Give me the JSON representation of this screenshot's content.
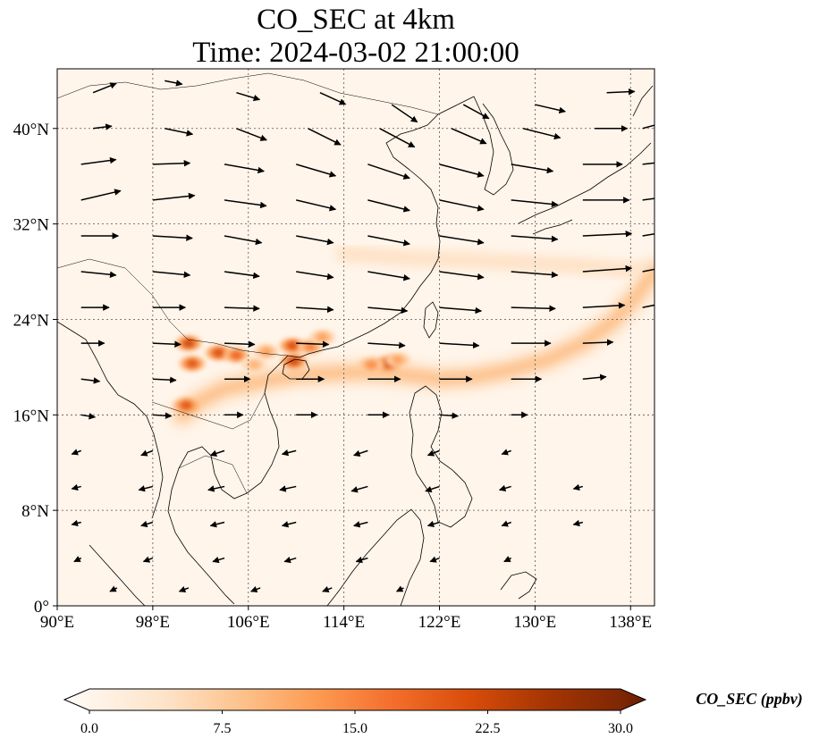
{
  "title": {
    "line1": "CO_SEC at 4km",
    "line2": "Time: 2024-03-02 21:00:00"
  },
  "map": {
    "lon_range": [
      90,
      140
    ],
    "lat_range": [
      0,
      45
    ],
    "grid": true,
    "x_ticks": [
      {
        "value": 90,
        "label": "90°E"
      },
      {
        "value": 98,
        "label": "98°E"
      },
      {
        "value": 106,
        "label": "106°E"
      },
      {
        "value": 114,
        "label": "114°E"
      },
      {
        "value": 122,
        "label": "122°E"
      },
      {
        "value": 130,
        "label": "130°E"
      },
      {
        "value": 138,
        "label": "138°E"
      }
    ],
    "y_ticks": [
      {
        "value": 0,
        "label": "0°"
      },
      {
        "value": 8,
        "label": "8°N"
      },
      {
        "value": 16,
        "label": "16°N"
      },
      {
        "value": 24,
        "label": "24°N"
      },
      {
        "value": 32,
        "label": "32°N"
      },
      {
        "value": 40,
        "label": "40°N"
      }
    ],
    "background_color": "#fff5ea",
    "plume_path": [
      [
        100.5,
        16.0
      ],
      [
        102,
        17.2
      ],
      [
        104,
        18.2
      ],
      [
        107,
        18.8
      ],
      [
        110,
        19.3
      ],
      [
        113,
        19.5
      ],
      [
        116,
        19.6
      ],
      [
        119,
        19.4
      ],
      [
        122,
        19.0
      ],
      [
        125,
        19.2
      ],
      [
        128,
        19.8
      ],
      [
        131,
        20.6
      ],
      [
        134,
        22.0
      ],
      [
        136.5,
        23.8
      ],
      [
        138.5,
        26.0
      ],
      [
        140,
        28.0
      ]
    ],
    "northern_plume_path": [
      [
        114,
        29.5
      ],
      [
        117,
        29.3
      ],
      [
        120,
        29.1
      ],
      [
        124,
        29.0
      ],
      [
        128,
        28.8
      ],
      [
        132,
        28.6
      ],
      [
        136,
        28.3
      ],
      [
        140,
        28.0
      ]
    ],
    "hotspots": [
      {
        "lon": 101.0,
        "lat": 22.0,
        "value": 22
      },
      {
        "lon": 101.3,
        "lat": 20.3,
        "value": 20
      },
      {
        "lon": 103.5,
        "lat": 21.2,
        "value": 21
      },
      {
        "lon": 105.0,
        "lat": 21.0,
        "value": 18
      },
      {
        "lon": 109.7,
        "lat": 21.8,
        "value": 21
      },
      {
        "lon": 111.2,
        "lat": 21.7,
        "value": 15
      },
      {
        "lon": 112.2,
        "lat": 22.5,
        "value": 12
      },
      {
        "lon": 107.5,
        "lat": 21.3,
        "value": 12
      },
      {
        "lon": 106.5,
        "lat": 20.2,
        "value": 10
      },
      {
        "lon": 100.8,
        "lat": 16.8,
        "value": 20
      },
      {
        "lon": 109.8,
        "lat": 20.5,
        "value": 22
      },
      {
        "lon": 117.7,
        "lat": 20.3,
        "value": 22
      },
      {
        "lon": 116.3,
        "lat": 20.2,
        "value": 14
      },
      {
        "lon": 118.5,
        "lat": 20.6,
        "value": 12
      }
    ],
    "wind_vectors": [
      [
        93,
        43,
        2,
        0.8
      ],
      [
        99,
        44,
        1.5,
        -0.3
      ],
      [
        105,
        43,
        2.0,
        -0.6
      ],
      [
        112,
        43,
        2.2,
        -1.0
      ],
      [
        118,
        42,
        2.2,
        -1.5
      ],
      [
        124,
        42,
        2.2,
        -1.2
      ],
      [
        130,
        42,
        2.6,
        -0.6
      ],
      [
        136,
        43,
        2.4,
        0.1
      ],
      [
        93,
        40,
        1.6,
        0.2
      ],
      [
        99,
        40,
        2.4,
        -0.5
      ],
      [
        105,
        40,
        2.6,
        -1.0
      ],
      [
        111,
        40,
        2.8,
        -1.4
      ],
      [
        117,
        40,
        3.0,
        -1.6
      ],
      [
        123,
        40,
        3.0,
        -1.3
      ],
      [
        129,
        40,
        3.2,
        -0.8
      ],
      [
        135,
        40,
        2.8,
        0.0
      ],
      [
        139,
        40,
        2.2,
        0.6
      ],
      [
        92,
        37,
        3.0,
        0.4
      ],
      [
        98,
        37,
        3.2,
        0.1
      ],
      [
        104,
        37,
        3.4,
        -0.6
      ],
      [
        110,
        37,
        3.4,
        -1.0
      ],
      [
        116,
        37,
        3.6,
        -1.2
      ],
      [
        122,
        37,
        3.8,
        -1.0
      ],
      [
        128,
        37,
        3.6,
        -0.6
      ],
      [
        134,
        37,
        3.4,
        0.0
      ],
      [
        139,
        37,
        2.8,
        0.3
      ],
      [
        92,
        34,
        3.4,
        0.8
      ],
      [
        98,
        34,
        3.6,
        0.4
      ],
      [
        104,
        34,
        3.6,
        -0.5
      ],
      [
        110,
        34,
        3.4,
        -0.8
      ],
      [
        116,
        34,
        3.6,
        -0.9
      ],
      [
        122,
        34,
        3.8,
        -0.8
      ],
      [
        128,
        34,
        4.0,
        -0.4
      ],
      [
        134,
        34,
        4.0,
        0.0
      ],
      [
        139,
        34,
        3.0,
        0.4
      ],
      [
        92,
        31,
        3.2,
        0.0
      ],
      [
        98,
        31,
        3.4,
        -0.2
      ],
      [
        104,
        31,
        3.2,
        -0.6
      ],
      [
        110,
        31,
        3.2,
        -0.6
      ],
      [
        116,
        31,
        3.6,
        -0.7
      ],
      [
        122,
        31,
        3.8,
        -0.6
      ],
      [
        128,
        31,
        4.0,
        -0.3
      ],
      [
        134,
        31,
        4.2,
        0.2
      ],
      [
        139,
        31,
        3.0,
        0.5
      ],
      [
        92,
        28,
        3.0,
        -0.3
      ],
      [
        98,
        28,
        3.2,
        -0.3
      ],
      [
        104,
        28,
        3.0,
        -0.4
      ],
      [
        110,
        28,
        3.2,
        -0.5
      ],
      [
        116,
        28,
        3.6,
        -0.6
      ],
      [
        122,
        28,
        3.8,
        -0.5
      ],
      [
        128,
        28,
        4.0,
        -0.3
      ],
      [
        134,
        28,
        4.2,
        0.3
      ],
      [
        139,
        28,
        3.0,
        0.6
      ],
      [
        92,
        25,
        2.4,
        0.0
      ],
      [
        98,
        25,
        2.8,
        0.0
      ],
      [
        104,
        25,
        3.0,
        -0.1
      ],
      [
        110,
        25,
        3.2,
        -0.2
      ],
      [
        116,
        25,
        3.4,
        -0.3
      ],
      [
        122,
        25,
        3.6,
        -0.3
      ],
      [
        128,
        25,
        3.8,
        -0.1
      ],
      [
        134,
        25,
        3.6,
        0.2
      ],
      [
        139,
        25,
        3.0,
        0.6
      ],
      [
        92,
        22,
        2.0,
        0.0
      ],
      [
        98,
        22,
        2.4,
        -0.1
      ],
      [
        104,
        22,
        2.6,
        -0.1
      ],
      [
        110,
        22,
        2.8,
        -0.1
      ],
      [
        116,
        22,
        3.2,
        -0.2
      ],
      [
        122,
        22,
        3.4,
        -0.2
      ],
      [
        128,
        22,
        3.4,
        0.0
      ],
      [
        134,
        22,
        2.6,
        0.1
      ],
      [
        92,
        19,
        1.6,
        -0.2
      ],
      [
        98,
        19,
        2.0,
        -0.1
      ],
      [
        104,
        19,
        2.2,
        0.0
      ],
      [
        110,
        19,
        2.4,
        0.0
      ],
      [
        116,
        19,
        2.8,
        0.0
      ],
      [
        122,
        19,
        2.8,
        0.0
      ],
      [
        128,
        19,
        2.6,
        0.0
      ],
      [
        134,
        19,
        2.0,
        0.2
      ],
      [
        92,
        16,
        1.2,
        -0.2
      ],
      [
        98,
        16,
        1.6,
        -0.1
      ],
      [
        104,
        16,
        1.6,
        0.0
      ],
      [
        110,
        16,
        1.8,
        0.0
      ],
      [
        116,
        16,
        1.8,
        0.0
      ],
      [
        122,
        16,
        1.6,
        -0.1
      ],
      [
        128,
        16,
        1.4,
        0.0
      ],
      [
        92,
        13,
        -0.8,
        -0.3
      ],
      [
        98,
        13,
        -1.0,
        -0.4
      ],
      [
        104,
        13,
        -1.2,
        -0.4
      ],
      [
        110,
        13,
        -1.2,
        -0.3
      ],
      [
        116,
        13,
        -1.2,
        -0.4
      ],
      [
        122,
        13,
        -1.0,
        -0.4
      ],
      [
        128,
        13,
        -0.8,
        -0.3
      ],
      [
        92,
        10,
        -0.8,
        -0.2
      ],
      [
        98,
        10,
        -1.2,
        -0.3
      ],
      [
        104,
        10,
        -1.4,
        -0.3
      ],
      [
        110,
        10,
        -1.4,
        -0.3
      ],
      [
        116,
        10,
        -1.4,
        -0.4
      ],
      [
        122,
        10,
        -1.2,
        -0.4
      ],
      [
        128,
        10,
        -1.0,
        -0.3
      ],
      [
        134,
        10,
        -0.8,
        -0.2
      ],
      [
        92,
        7,
        -0.8,
        -0.2
      ],
      [
        98,
        7,
        -1.0,
        -0.3
      ],
      [
        104,
        7,
        -1.2,
        -0.3
      ],
      [
        110,
        7,
        -1.2,
        -0.3
      ],
      [
        116,
        7,
        -1.2,
        -0.3
      ],
      [
        122,
        7,
        -1.0,
        -0.3
      ],
      [
        128,
        7,
        -0.8,
        -0.3
      ],
      [
        134,
        7,
        -0.8,
        -0.2
      ],
      [
        92,
        4,
        -0.6,
        -0.3
      ],
      [
        98,
        4,
        -0.8,
        -0.3
      ],
      [
        104,
        4,
        -1.0,
        -0.3
      ],
      [
        110,
        4,
        -1.0,
        -0.3
      ],
      [
        116,
        4,
        -1.0,
        -0.3
      ],
      [
        122,
        4,
        -0.8,
        -0.3
      ],
      [
        128,
        4,
        -0.6,
        -0.3
      ],
      [
        95,
        1.5,
        -0.6,
        -0.3
      ],
      [
        101,
        1.5,
        -0.8,
        -0.3
      ],
      [
        107,
        1.5,
        -0.8,
        -0.3
      ],
      [
        113,
        1.5,
        -0.8,
        -0.3
      ],
      [
        119,
        1.5,
        -0.6,
        -0.3
      ]
    ]
  },
  "colorbar": {
    "min": 0,
    "max": 30,
    "ticks": [
      {
        "value": 0,
        "label": "0.0"
      },
      {
        "value": 7.5,
        "label": "7.5"
      },
      {
        "value": 15,
        "label": "15.0"
      },
      {
        "value": 22.5,
        "label": "22.5"
      },
      {
        "value": 30,
        "label": "30.0"
      }
    ],
    "colormap_stops": [
      "#fff5eb",
      "#fee3c8",
      "#fdc28c",
      "#fd9a52",
      "#f36e2c",
      "#d94d0b",
      "#a63603",
      "#7f2704"
    ],
    "label": "CO_SEC (ppbv)"
  }
}
